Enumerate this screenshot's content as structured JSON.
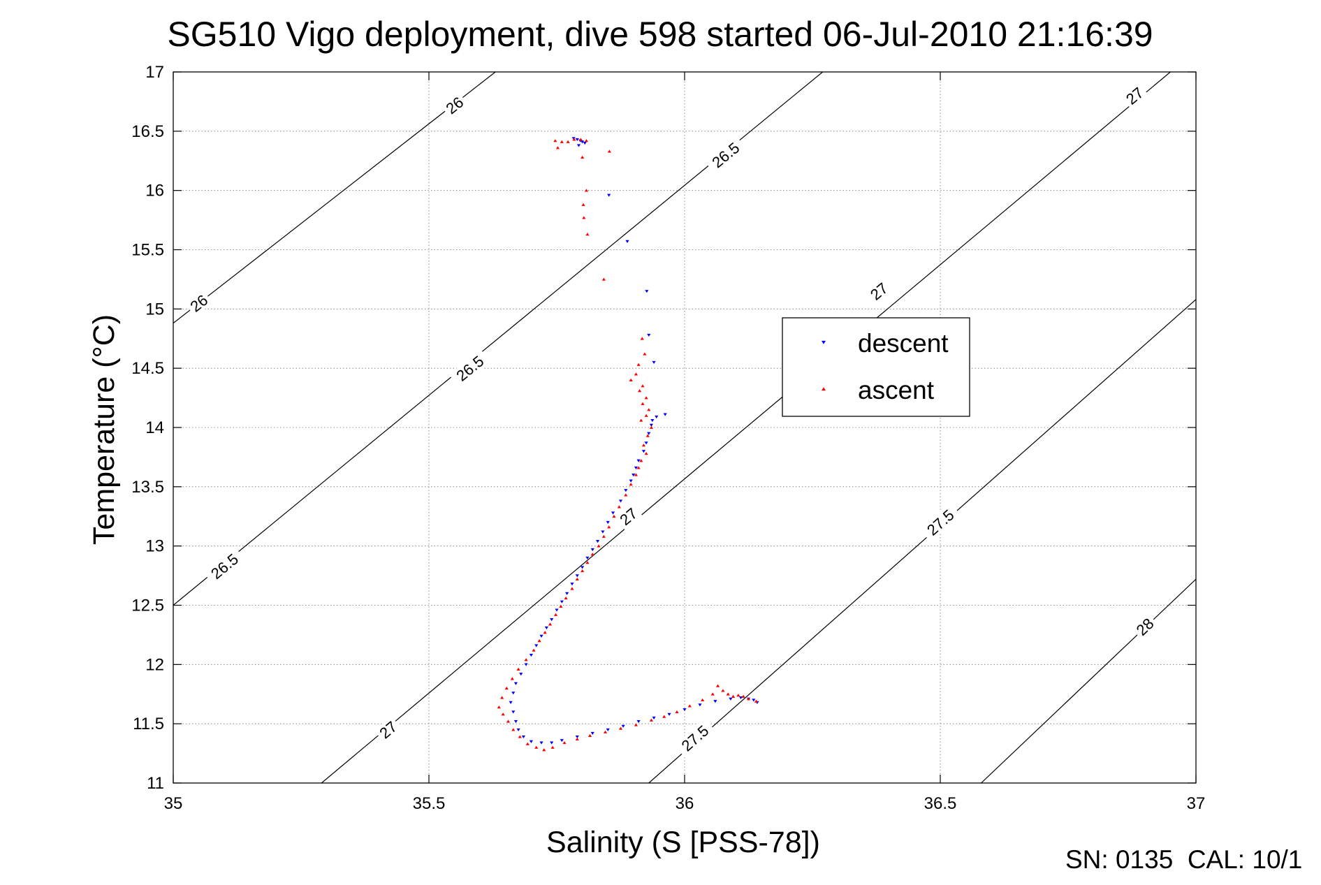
{
  "chart_data": {
    "type": "scatter",
    "title": "SG510 Vigo deployment, dive 598 started 06-Jul-2010 21:16:39",
    "xlabel": "Salinity (S [PSS-78])",
    "ylabel": "Temperature (°C)",
    "xlim": [
      35,
      37
    ],
    "ylim": [
      11,
      17
    ],
    "grid": true,
    "x_ticks": [
      35,
      35.5,
      36,
      36.5,
      37
    ],
    "x_tick_labels": [
      "35",
      "35.5",
      "36",
      "36.5",
      "37"
    ],
    "y_ticks": [
      11,
      11.5,
      12,
      12.5,
      13,
      13.5,
      14,
      14.5,
      15,
      15.5,
      16,
      16.5,
      17
    ],
    "y_tick_labels": [
      "11",
      "11.5",
      "12",
      "12.5",
      "13",
      "13.5",
      "14",
      "14.5",
      "15",
      "15.5",
      "16",
      "16.5",
      "17"
    ],
    "legend_position": "right",
    "footer": "SN: 0135  CAL: 10/1",
    "density_contours": [
      {
        "label": "26",
        "points": [
          [
            35,
            14.88
          ],
          [
            35.63,
            17
          ]
        ],
        "label_at": [
          [
            35.05,
            15.05
          ],
          [
            35.55,
            16.72
          ]
        ]
      },
      {
        "label": "26.5",
        "points": [
          [
            35,
            12.5
          ],
          [
            36.27,
            17
          ]
        ],
        "label_at": [
          [
            35.1,
            12.83
          ],
          [
            35.58,
            14.5
          ],
          [
            36.08,
            16.3
          ]
        ]
      },
      {
        "label": "27",
        "points": [
          [
            35.29,
            11
          ],
          [
            36.95,
            17
          ]
        ],
        "label_at": [
          [
            35.42,
            11.45
          ],
          [
            35.89,
            13.25
          ],
          [
            36.38,
            15.15
          ],
          [
            36.88,
            16.8
          ]
        ]
      },
      {
        "label": "27.5",
        "points": [
          [
            35.93,
            11
          ],
          [
            37,
            15.08
          ]
        ],
        "label_at": [
          [
            36.02,
            11.38
          ],
          [
            36.5,
            13.2
          ]
        ]
      },
      {
        "label": "28",
        "points": [
          [
            36.58,
            11
          ],
          [
            37,
            12.72
          ]
        ],
        "label_at": [
          [
            36.9,
            12.32
          ]
        ]
      }
    ],
    "series": [
      {
        "name": "descent",
        "color": "#0000ff",
        "marker": "triangle-down",
        "points": [
          [
            35.783,
            16.44
          ],
          [
            35.79,
            16.43
          ],
          [
            35.796,
            16.42
          ],
          [
            35.8,
            16.41
          ],
          [
            35.805,
            16.4
          ],
          [
            35.793,
            16.38
          ],
          [
            35.852,
            15.96
          ],
          [
            35.888,
            15.57
          ],
          [
            35.926,
            15.15
          ],
          [
            35.93,
            14.78
          ],
          [
            35.94,
            14.55
          ],
          [
            35.962,
            14.11
          ],
          [
            35.945,
            14.09
          ],
          [
            35.937,
            14.06
          ],
          [
            35.935,
            14.02
          ],
          [
            35.93,
            13.95
          ],
          [
            35.925,
            13.87
          ],
          [
            35.92,
            13.8
          ],
          [
            35.91,
            13.72
          ],
          [
            35.905,
            13.66
          ],
          [
            35.9,
            13.6
          ],
          [
            35.895,
            13.55
          ],
          [
            35.885,
            13.47
          ],
          [
            35.875,
            13.38
          ],
          [
            35.86,
            13.28
          ],
          [
            35.85,
            13.2
          ],
          [
            35.84,
            13.12
          ],
          [
            35.83,
            13.04
          ],
          [
            35.82,
            12.97
          ],
          [
            35.81,
            12.9
          ],
          [
            35.8,
            12.82
          ],
          [
            35.79,
            12.75
          ],
          [
            35.78,
            12.68
          ],
          [
            35.77,
            12.6
          ],
          [
            35.76,
            12.53
          ],
          [
            35.75,
            12.46
          ],
          [
            35.74,
            12.38
          ],
          [
            35.73,
            12.31
          ],
          [
            35.72,
            12.24
          ],
          [
            35.71,
            12.16
          ],
          [
            35.7,
            12.08
          ],
          [
            35.69,
            12.0
          ],
          [
            35.68,
            11.92
          ],
          [
            35.67,
            11.84
          ],
          [
            35.665,
            11.76
          ],
          [
            35.66,
            11.68
          ],
          [
            35.665,
            11.6
          ],
          [
            35.67,
            11.52
          ],
          [
            35.675,
            11.45
          ],
          [
            35.685,
            11.39
          ],
          [
            35.7,
            11.35
          ],
          [
            35.72,
            11.34
          ],
          [
            35.74,
            11.34
          ],
          [
            35.76,
            11.36
          ],
          [
            35.79,
            11.39
          ],
          [
            35.82,
            11.42
          ],
          [
            35.85,
            11.45
          ],
          [
            35.88,
            11.48
          ],
          [
            35.91,
            11.52
          ],
          [
            35.94,
            11.55
          ],
          [
            35.97,
            11.58
          ],
          [
            36.0,
            11.62
          ],
          [
            36.03,
            11.66
          ],
          [
            36.06,
            11.69
          ],
          [
            36.09,
            11.71
          ],
          [
            36.11,
            11.72
          ],
          [
            36.125,
            11.71
          ],
          [
            36.135,
            11.7
          ],
          [
            36.142,
            11.68
          ]
        ]
      },
      {
        "name": "ascent",
        "color": "#ff0000",
        "marker": "triangle-up",
        "points": [
          [
            35.747,
            16.42
          ],
          [
            35.76,
            16.41
          ],
          [
            35.772,
            16.41
          ],
          [
            35.784,
            16.43
          ],
          [
            35.797,
            16.43
          ],
          [
            35.808,
            16.42
          ],
          [
            35.752,
            16.36
          ],
          [
            35.853,
            16.33
          ],
          [
            35.8,
            16.28
          ],
          [
            35.808,
            16.0
          ],
          [
            35.802,
            15.88
          ],
          [
            35.803,
            15.77
          ],
          [
            35.81,
            15.63
          ],
          [
            35.842,
            15.25
          ],
          [
            35.917,
            14.75
          ],
          [
            35.922,
            14.62
          ],
          [
            35.91,
            14.53
          ],
          [
            35.905,
            14.45
          ],
          [
            35.895,
            14.4
          ],
          [
            35.918,
            14.35
          ],
          [
            35.912,
            14.31
          ],
          [
            35.925,
            14.25
          ],
          [
            35.918,
            14.2
          ],
          [
            35.93,
            14.15
          ],
          [
            35.925,
            14.1
          ],
          [
            35.915,
            14.06
          ],
          [
            35.935,
            14.0
          ],
          [
            35.928,
            13.93
          ],
          [
            35.92,
            13.85
          ],
          [
            35.925,
            13.78
          ],
          [
            35.915,
            13.72
          ],
          [
            35.91,
            13.66
          ],
          [
            35.905,
            13.6
          ],
          [
            35.895,
            13.52
          ],
          [
            35.885,
            13.43
          ],
          [
            35.872,
            13.33
          ],
          [
            35.862,
            13.25
          ],
          [
            35.852,
            13.16
          ],
          [
            35.842,
            13.08
          ],
          [
            35.832,
            13.0
          ],
          [
            35.82,
            12.93
          ],
          [
            35.81,
            12.86
          ],
          [
            35.8,
            12.79
          ],
          [
            35.79,
            12.72
          ],
          [
            35.78,
            12.64
          ],
          [
            35.768,
            12.56
          ],
          [
            35.758,
            12.49
          ],
          [
            35.748,
            12.42
          ],
          [
            35.737,
            12.34
          ],
          [
            35.727,
            12.27
          ],
          [
            35.716,
            12.2
          ],
          [
            35.705,
            12.12
          ],
          [
            35.69,
            12.04
          ],
          [
            35.675,
            11.96
          ],
          [
            35.663,
            11.88
          ],
          [
            35.652,
            11.8
          ],
          [
            35.643,
            11.72
          ],
          [
            35.637,
            11.64
          ],
          [
            35.645,
            11.58
          ],
          [
            35.655,
            11.52
          ],
          [
            35.665,
            11.45
          ],
          [
            35.678,
            11.39
          ],
          [
            35.693,
            11.33
          ],
          [
            35.71,
            11.3
          ],
          [
            35.725,
            11.28
          ],
          [
            35.742,
            11.3
          ],
          [
            35.765,
            11.34
          ],
          [
            35.79,
            11.37
          ],
          [
            35.815,
            11.4
          ],
          [
            35.845,
            11.43
          ],
          [
            35.875,
            11.46
          ],
          [
            35.905,
            11.49
          ],
          [
            35.935,
            11.53
          ],
          [
            35.96,
            11.56
          ],
          [
            35.985,
            11.6
          ],
          [
            36.01,
            11.65
          ],
          [
            36.035,
            11.7
          ],
          [
            36.055,
            11.75
          ],
          [
            36.065,
            11.82
          ],
          [
            36.075,
            11.78
          ],
          [
            36.085,
            11.75
          ],
          [
            36.095,
            11.73
          ],
          [
            36.105,
            11.74
          ],
          [
            36.115,
            11.73
          ],
          [
            36.125,
            11.71
          ],
          [
            36.14,
            11.69
          ]
        ]
      }
    ]
  }
}
